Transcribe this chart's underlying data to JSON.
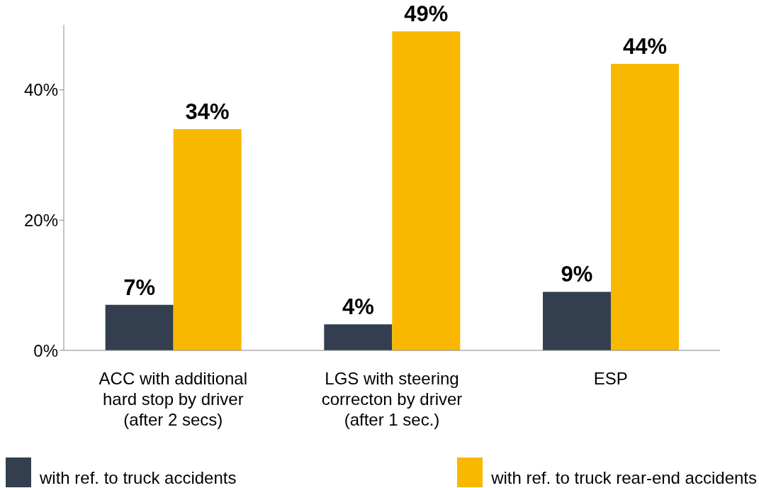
{
  "chart_data": {
    "type": "bar",
    "categories": [
      "ACC with additional\nhard stop by driver\n(after 2 secs)",
      "LGS with steering\ncorrecton by driver\n(after 1 sec.)",
      "ESP"
    ],
    "series": [
      {
        "name": "with ref. to truck accidents",
        "color": "#333f4f",
        "values": [
          7,
          4,
          9
        ],
        "value_labels": [
          "7%",
          "4%",
          "9%"
        ]
      },
      {
        "name": "with ref. to truck rear-end accidents",
        "color": "#f9b800",
        "values": [
          34,
          49,
          44
        ],
        "value_labels": [
          "34%",
          "49%",
          "44%"
        ]
      }
    ],
    "ylim": [
      0,
      50
    ],
    "yticks": [
      {
        "value": 0,
        "label": "0%"
      },
      {
        "value": 20,
        "label": "20%"
      },
      {
        "value": 40,
        "label": "40%"
      }
    ],
    "grid": false,
    "legend": "bottom"
  }
}
